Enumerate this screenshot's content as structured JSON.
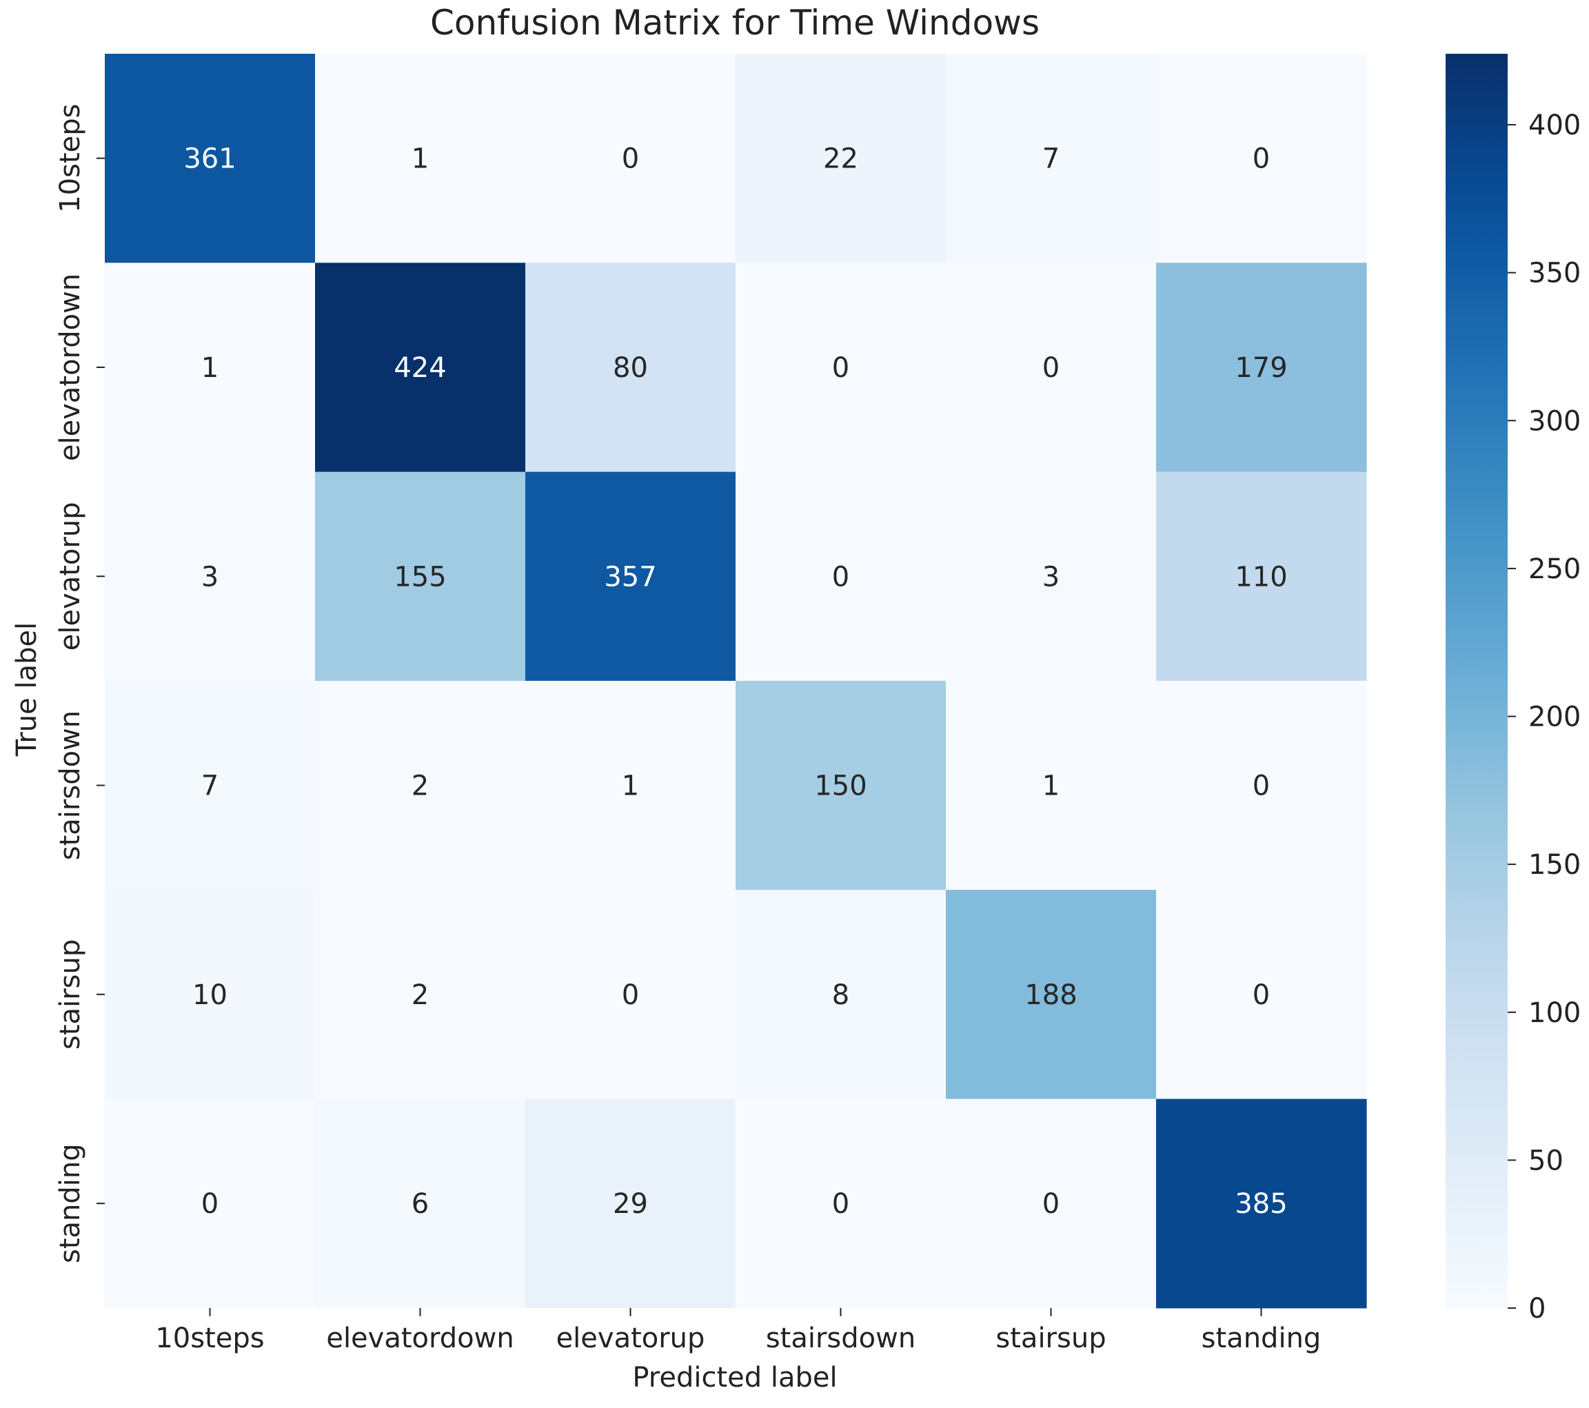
{
  "chart_data": {
    "type": "heatmap",
    "title": "Confusion Matrix for Time Windows",
    "xlabel": "Predicted label",
    "ylabel": "True label",
    "x_categories": [
      "10steps",
      "elevatordown",
      "elevatorup",
      "stairsdown",
      "stairsup",
      "standing"
    ],
    "y_categories": [
      "10steps",
      "elevatordown",
      "elevatorup",
      "stairsdown",
      "stairsup",
      "standing"
    ],
    "matrix": [
      [
        361,
        1,
        0,
        22,
        7,
        0
      ],
      [
        1,
        424,
        80,
        0,
        0,
        179
      ],
      [
        3,
        155,
        357,
        0,
        3,
        110
      ],
      [
        7,
        2,
        1,
        150,
        1,
        0
      ],
      [
        10,
        2,
        0,
        8,
        188,
        0
      ],
      [
        0,
        6,
        29,
        0,
        0,
        385
      ]
    ],
    "colorbar": {
      "range": [
        0,
        424
      ],
      "ticks": [
        0,
        50,
        100,
        150,
        200,
        250,
        300,
        350,
        400
      ],
      "colormap": "Blues"
    }
  }
}
